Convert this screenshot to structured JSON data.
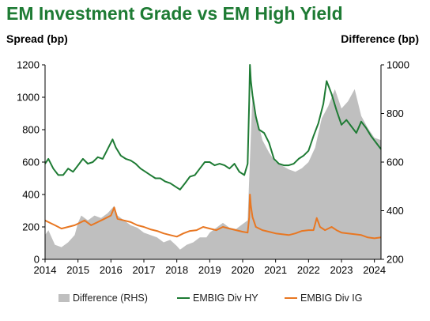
{
  "chart_data": {
    "type": "line",
    "title": "EM Investment Grade vs EM High Yield",
    "ylabel": "Spread (bp)",
    "y2label": "Difference (bp)",
    "ylim": [
      0,
      1200
    ],
    "y2lim": [
      200,
      1000
    ],
    "yticks": [
      0,
      200,
      400,
      600,
      800,
      1000,
      1200
    ],
    "y2ticks": [
      200,
      400,
      600,
      800,
      1000
    ],
    "xlim": [
      2014.0,
      2024.2
    ],
    "xticks": [
      2014,
      2015,
      2016,
      2017,
      2018,
      2019,
      2020,
      2021,
      2022,
      2023,
      2024
    ],
    "legend_position": "bottom",
    "grid": false,
    "series": [
      {
        "name": "Difference (RHS)",
        "axis": "right",
        "style": "area",
        "color": "#bfbfbf",
        "x": [
          2014.0,
          2014.1,
          2014.3,
          2014.5,
          2014.7,
          2014.9,
          2015.0,
          2015.1,
          2015.3,
          2015.5,
          2015.7,
          2015.9,
          2016.1,
          2016.2,
          2016.4,
          2016.6,
          2016.8,
          2017.0,
          2017.2,
          2017.4,
          2017.6,
          2017.8,
          2018.0,
          2018.1,
          2018.3,
          2018.5,
          2018.7,
          2018.9,
          2019.0,
          2019.2,
          2019.4,
          2019.6,
          2019.8,
          2020.0,
          2020.15,
          2020.22,
          2020.3,
          2020.4,
          2020.6,
          2020.8,
          2021.0,
          2021.2,
          2021.4,
          2021.6,
          2021.8,
          2022.0,
          2022.2,
          2022.4,
          2022.6,
          2022.8,
          2023.0,
          2023.2,
          2023.4,
          2023.6,
          2023.8,
          2024.0,
          2024.2
        ],
        "values": [
          300,
          320,
          260,
          250,
          270,
          300,
          350,
          380,
          360,
          380,
          370,
          390,
          420,
          380,
          360,
          340,
          330,
          310,
          300,
          290,
          270,
          280,
          255,
          240,
          260,
          270,
          290,
          290,
          310,
          330,
          350,
          330,
          325,
          345,
          360,
          610,
          890,
          800,
          690,
          640,
          600,
          585,
          570,
          560,
          575,
          600,
          660,
          780,
          830,
          900,
          820,
          850,
          900,
          790,
          740,
          700,
          690
        ]
      },
      {
        "name": "EMBIG Div HY",
        "axis": "left",
        "style": "line",
        "color": "#1e7b34",
        "x": [
          2014.0,
          2014.1,
          2014.25,
          2014.4,
          2014.55,
          2014.7,
          2014.85,
          2015.0,
          2015.15,
          2015.3,
          2015.45,
          2015.6,
          2015.75,
          2015.9,
          2016.05,
          2016.15,
          2016.3,
          2016.45,
          2016.6,
          2016.75,
          2016.9,
          2017.05,
          2017.2,
          2017.35,
          2017.5,
          2017.65,
          2017.8,
          2017.95,
          2018.1,
          2018.25,
          2018.4,
          2018.55,
          2018.7,
          2018.85,
          2019.0,
          2019.15,
          2019.3,
          2019.45,
          2019.6,
          2019.75,
          2019.9,
          2020.05,
          2020.15,
          2020.2,
          2020.22,
          2020.25,
          2020.3,
          2020.4,
          2020.5,
          2020.65,
          2020.8,
          2020.95,
          2021.1,
          2021.25,
          2021.4,
          2021.55,
          2021.7,
          2021.85,
          2022.0,
          2022.15,
          2022.3,
          2022.45,
          2022.55,
          2022.7,
          2022.85,
          2023.0,
          2023.15,
          2023.3,
          2023.45,
          2023.6,
          2023.75,
          2023.9,
          2024.05,
          2024.2
        ],
        "values": [
          590,
          620,
          560,
          520,
          520,
          560,
          540,
          580,
          620,
          590,
          600,
          630,
          620,
          680,
          740,
          690,
          640,
          620,
          610,
          590,
          560,
          540,
          520,
          500,
          500,
          480,
          470,
          450,
          430,
          470,
          510,
          520,
          560,
          600,
          600,
          580,
          590,
          580,
          560,
          590,
          540,
          520,
          590,
          980,
          1200,
          1100,
          1010,
          880,
          800,
          780,
          720,
          620,
          590,
          580,
          580,
          590,
          620,
          640,
          670,
          760,
          840,
          960,
          1100,
          1020,
          920,
          830,
          860,
          820,
          780,
          850,
          810,
          760,
          720,
          680
        ]
      },
      {
        "name": "EMBIG Div IG",
        "axis": "left",
        "style": "line",
        "color": "#e87722",
        "x": [
          2014.0,
          2014.1,
          2014.3,
          2014.5,
          2014.7,
          2014.9,
          2015.0,
          2015.2,
          2015.4,
          2015.6,
          2015.8,
          2016.0,
          2016.1,
          2016.2,
          2016.4,
          2016.6,
          2016.8,
          2017.0,
          2017.2,
          2017.4,
          2017.6,
          2017.8,
          2018.0,
          2018.2,
          2018.4,
          2018.6,
          2018.8,
          2019.0,
          2019.2,
          2019.4,
          2019.6,
          2019.8,
          2020.0,
          2020.15,
          2020.2,
          2020.22,
          2020.25,
          2020.3,
          2020.4,
          2020.6,
          2020.8,
          2021.0,
          2021.2,
          2021.4,
          2021.6,
          2021.8,
          2022.0,
          2022.15,
          2022.25,
          2022.35,
          2022.5,
          2022.7,
          2022.85,
          2023.0,
          2023.2,
          2023.4,
          2023.6,
          2023.8,
          2024.0,
          2024.2
        ],
        "values": [
          240,
          230,
          210,
          190,
          200,
          210,
          220,
          240,
          210,
          230,
          250,
          270,
          320,
          250,
          240,
          230,
          210,
          200,
          185,
          175,
          160,
          150,
          140,
          160,
          175,
          180,
          200,
          190,
          180,
          200,
          190,
          180,
          170,
          165,
          260,
          400,
          330,
          260,
          200,
          180,
          170,
          160,
          155,
          150,
          160,
          175,
          180,
          180,
          255,
          200,
          180,
          200,
          180,
          165,
          160,
          155,
          150,
          135,
          130,
          135
        ]
      }
    ]
  },
  "legend": {
    "diff_label": "Difference (RHS)",
    "hy_label": "EMBIG Div HY",
    "ig_label": "EMBIG Div IG"
  }
}
